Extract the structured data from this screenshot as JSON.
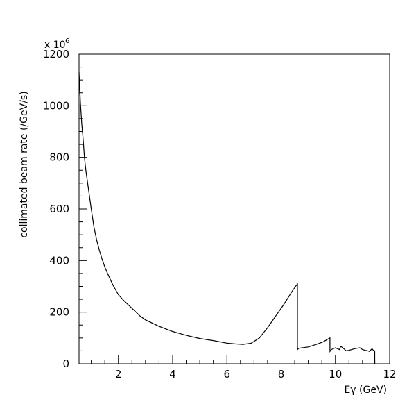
{
  "chart_data": {
    "type": "line",
    "title": "",
    "xlabel": "Eγ (GeV)",
    "ylabel": "collimated beam rate (/GeV/s)",
    "y_multiplier_label": "x 10",
    "y_multiplier_exponent": "6",
    "xlim": [
      0.55,
      12
    ],
    "ylim": [
      0,
      1200
    ],
    "x_ticks": [
      2,
      4,
      6,
      8,
      10,
      12
    ],
    "x_tick_labels": [
      "2",
      "4",
      "6",
      "8",
      "10",
      "12"
    ],
    "x_minor_step": 0.5,
    "y_ticks": [
      0,
      200,
      400,
      600,
      800,
      1000,
      1200
    ],
    "y_tick_labels": [
      "0",
      "200",
      "400",
      "600",
      "800",
      "1000",
      "1200"
    ],
    "y_minor_step": 50,
    "grid": false,
    "legend": "none",
    "line_color": "#000000",
    "series": [
      {
        "x": [
          0.55,
          0.6,
          0.65,
          0.7,
          0.75,
          0.8,
          0.9,
          1.0,
          1.1,
          1.2,
          1.3,
          1.4,
          1.5,
          1.6,
          1.8,
          2.0,
          2.2,
          2.5,
          2.8,
          3.0,
          3.5,
          4.0,
          4.5,
          5.0,
          5.5,
          6.0,
          6.3,
          6.6,
          6.9,
          7.2,
          7.5,
          7.8,
          8.1,
          8.4,
          8.6,
          8.6,
          8.65,
          9.0,
          9.3,
          9.55,
          9.8,
          9.8,
          9.85,
          10.0,
          10.15,
          10.2,
          10.4,
          10.5,
          10.6,
          10.7,
          10.8,
          10.9,
          11.0,
          11.1,
          11.2,
          11.25,
          11.35,
          11.4,
          11.45,
          11.45
        ],
        "y": [
          1130,
          1010,
          930,
          870,
          800,
          750,
          675,
          600,
          530,
          480,
          440,
          405,
          375,
          350,
          305,
          268,
          245,
          215,
          185,
          170,
          145,
          125,
          110,
          98,
          90,
          80,
          77,
          75,
          80,
          100,
          140,
          185,
          230,
          280,
          310,
          55,
          60,
          65,
          75,
          85,
          100,
          48,
          55,
          62,
          55,
          68,
          50,
          52,
          55,
          58,
          60,
          62,
          55,
          52,
          50,
          48,
          58,
          52,
          50,
          0
        ]
      }
    ]
  }
}
